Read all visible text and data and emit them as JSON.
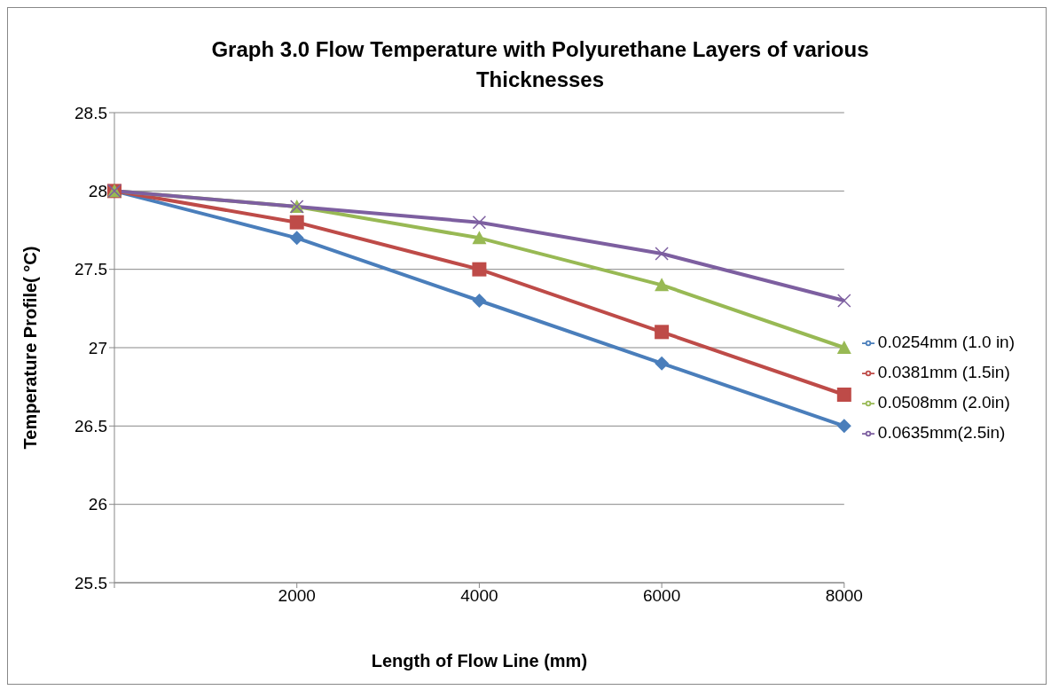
{
  "chart_data": {
    "type": "line",
    "title": "Graph 3.0 Flow Temperature with Polyurethane Layers of various Thicknesses",
    "xlabel": "Length of Flow Line (mm)",
    "ylabel": "Temperature Profile( °C)",
    "categories": [
      null,
      "2000",
      "4000",
      "6000",
      "8000"
    ],
    "series": [
      {
        "name": "0.0254mm (1.0 in)",
        "color": "#4a7ebb",
        "marker": "diamond",
        "values": [
          28,
          27.7,
          27.3,
          26.9,
          26.5
        ]
      },
      {
        "name": "0.0381mm (1.5in)",
        "color": "#be4b48",
        "marker": "square",
        "values": [
          28,
          27.8,
          27.5,
          27.1,
          26.7
        ]
      },
      {
        "name": "0.0508mm (2.0in)",
        "color": "#98b954",
        "marker": "triangle",
        "values": [
          28,
          27.9,
          27.7,
          27.4,
          27.0
        ]
      },
      {
        "name": "0.0635mm(2.5in)",
        "color": "#7d5fa0",
        "marker": "cross",
        "values": [
          28,
          27.9,
          27.8,
          27.6,
          27.3
        ]
      }
    ],
    "ylim": [
      25.5,
      28.5
    ],
    "yticks": [
      25.5,
      26,
      26.5,
      27,
      27.5,
      28,
      28.5
    ],
    "grid": "y",
    "legend": "right"
  }
}
